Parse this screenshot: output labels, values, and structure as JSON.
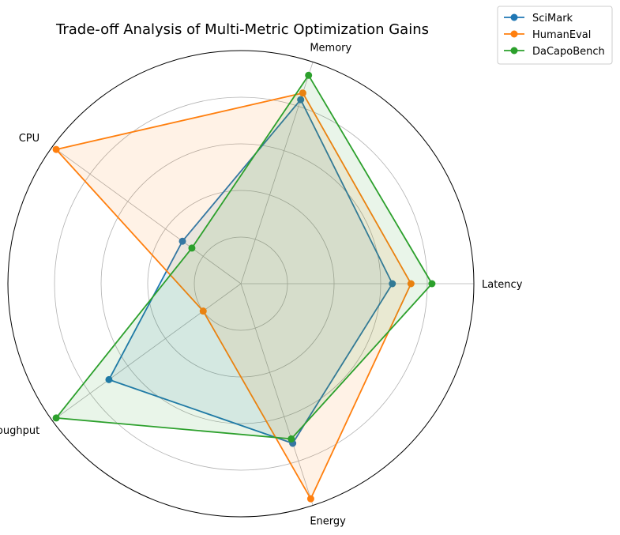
{
  "chart_data": {
    "type": "radar",
    "title": "Trade-off Analysis of Multi-Metric Optimization Gains",
    "axes": [
      "Latency",
      "Memory",
      "CPU",
      "Throughput",
      "Energy"
    ],
    "rlim": [
      0,
      100
    ],
    "grid": true,
    "legend_position": "top-right",
    "series": [
      {
        "name": "SciMark",
        "color": "#1f77b4",
        "values": [
          65,
          83,
          31,
          70,
          72
        ]
      },
      {
        "name": "HumanEval",
        "color": "#ff7f0e",
        "values": [
          73,
          86,
          98,
          20,
          97
        ]
      },
      {
        "name": "DaCapoBench",
        "color": "#2ca02c",
        "values": [
          82,
          94,
          26,
          98,
          70
        ]
      }
    ]
  }
}
